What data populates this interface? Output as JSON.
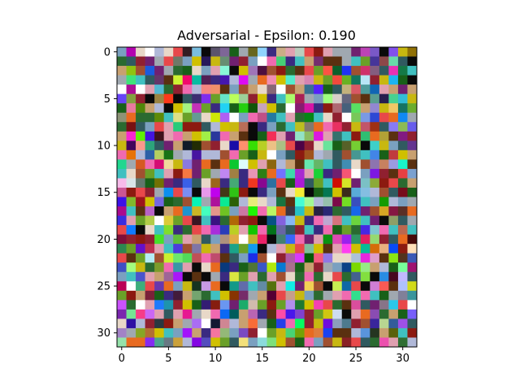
{
  "chart_data": {
    "type": "heatmap",
    "title": "Adversarial - Epsilon: 0.190",
    "xlabel": "",
    "ylabel": "",
    "grid_size": 32,
    "xlim": [
      -0.5,
      31.5
    ],
    "ylim": [
      31.5,
      -0.5
    ],
    "x_ticks": [
      0,
      5,
      10,
      15,
      20,
      25,
      30
    ],
    "y_ticks": [
      0,
      5,
      10,
      15,
      20,
      25,
      30
    ],
    "x_tick_labels": [
      "0",
      "5",
      "10",
      "15",
      "20",
      "25",
      "30"
    ],
    "y_tick_labels": [
      "0",
      "5",
      "10",
      "15",
      "20",
      "25",
      "30"
    ],
    "grid": false,
    "colors": {
      "axis": "#000000",
      "background": "#ffffff"
    },
    "palette": [
      "#8c1a10",
      "#e8484a",
      "#f06ab0",
      "#c8a070",
      "#5a3010",
      "#0a0a0a",
      "#2a6a30",
      "#6aa028",
      "#a0a8b0",
      "#3a2a80",
      "#c8b810",
      "#ffffff",
      "#7aa0c0",
      "#e86a20",
      "#702070",
      "#40c0c0",
      "#a05030",
      "#e8d8c8",
      "#305a60",
      "#d0c000",
      "#b0b8d8",
      "#902030",
      "#186018",
      "#e0a0b0"
    ],
    "pixel_seed": 190
  }
}
